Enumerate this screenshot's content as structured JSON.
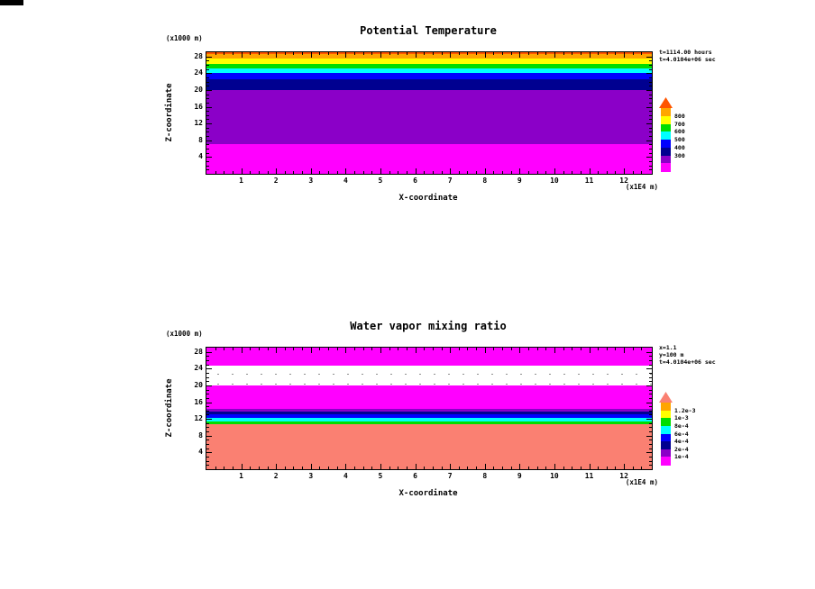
{
  "window": {
    "background": "#FFFFFF",
    "corner_mark_color": "#000000"
  },
  "chart_data": [
    {
      "type": "heatmap",
      "title": "Potential Temperature",
      "xlabel": "X-coordinate",
      "ylabel": "Z-coordinate",
      "x_unit_label": "(x1E4 m)",
      "y_unit_label": "(x1000 m)",
      "xlim": [
        0,
        12.8
      ],
      "ylim": [
        0,
        29
      ],
      "x_ticks": [
        1,
        2,
        3,
        4,
        5,
        6,
        7,
        8,
        9,
        10,
        11,
        12
      ],
      "y_ticks": [
        4,
        8,
        12,
        16,
        20,
        24,
        28
      ],
      "annotations": [
        "t=1114.00 hours",
        "t=4.0104e+06 sec"
      ],
      "bands": [
        {
          "z_from": 0,
          "z_to": 7,
          "color": "#FF00FF",
          "value_range": "< 300"
        },
        {
          "z_from": 7,
          "z_to": 20,
          "color": "#8B00C8",
          "value_range": "300-400"
        },
        {
          "z_from": 20,
          "z_to": 22.5,
          "color": "#000090",
          "value_range": "400-500"
        },
        {
          "z_from": 22.5,
          "z_to": 24,
          "color": "#0000FF",
          "value_range": "500-600"
        },
        {
          "z_from": 24,
          "z_to": 25.2,
          "color": "#00FFFF",
          "value_range": "600-700"
        },
        {
          "z_from": 25.2,
          "z_to": 26.2,
          "color": "#00DD00",
          "value_range": "700-750"
        },
        {
          "z_from": 26.2,
          "z_to": 27.4,
          "color": "#FFFF00",
          "value_range": "750-800"
        },
        {
          "z_from": 27.4,
          "z_to": 28.6,
          "color": "#FFA500",
          "value_range": "~800"
        },
        {
          "z_from": 28.6,
          "z_to": 29,
          "color": "#FF5500",
          "value_range": "> 800"
        }
      ],
      "colorbar": {
        "labels_top_to_bottom": [
          "800",
          "700",
          "600",
          "500",
          "400",
          "300"
        ],
        "segment_colors_top_to_bottom": [
          "#FFA500",
          "#FFFF00",
          "#00DD00",
          "#00FFFF",
          "#0000FF",
          "#000090",
          "#8B00C8",
          "#FF00FF"
        ],
        "overflow_arrow_color": "#FF5500"
      }
    },
    {
      "type": "heatmap",
      "title": "Water vapor mixing ratio",
      "xlabel": "X-coordinate",
      "ylabel": "Z-coordinate",
      "x_unit_label": "(x1E4 m)",
      "y_unit_label": "(x1000 m)",
      "xlim": [
        0,
        12.8
      ],
      "ylim": [
        0,
        29
      ],
      "x_ticks": [
        1,
        2,
        3,
        4,
        5,
        6,
        7,
        8,
        9,
        10,
        11,
        12
      ],
      "y_ticks": [
        4,
        8,
        12,
        16,
        20,
        24,
        28
      ],
      "annotations": [
        "x=1.1",
        "y=100 m",
        "t=4.0104e+06 sec"
      ],
      "bands": [
        {
          "z_from": 0,
          "z_to": 10.8,
          "color": "#FA8072",
          "value_range": "> 1.2e-3"
        },
        {
          "z_from": 10.8,
          "z_to": 11.4,
          "color": "#00DD00",
          "value_range": "8e-4 - 1e-3"
        },
        {
          "z_from": 11.4,
          "z_to": 12.2,
          "color": "#00FFFF",
          "value_range": "6e-4 - 8e-4"
        },
        {
          "z_from": 12.2,
          "z_to": 13,
          "color": "#0000FF",
          "value_range": "4e-4 - 6e-4"
        },
        {
          "z_from": 13,
          "z_to": 13.7,
          "color": "#000090",
          "value_range": "2e-4 - 4e-4"
        },
        {
          "z_from": 13.7,
          "z_to": 14.3,
          "color": "#8B00C8",
          "value_range": "1e-4 - 2e-4"
        },
        {
          "z_from": 14.3,
          "z_to": 20,
          "color": "#FF00FF",
          "value_range": "~1e-4"
        },
        {
          "z_from": 20,
          "z_to": 24.6,
          "color": "#FFFFFF",
          "pattern": "sparse-dots",
          "value_range": "< 1e-4"
        },
        {
          "z_from": 24.6,
          "z_to": 29,
          "color": "#FF00FF",
          "value_range": "~1e-4"
        }
      ],
      "colorbar": {
        "labels_top_to_bottom": [
          "1.2e-3",
          "1e-3",
          "8e-4",
          "6e-4",
          "4e-4",
          "2e-4",
          "1e-4"
        ],
        "segment_colors_top_to_bottom": [
          "#FFA500",
          "#FFFF00",
          "#00DD00",
          "#00FFFF",
          "#0000FF",
          "#000090",
          "#8B00C8",
          "#FF00FF"
        ],
        "overflow_arrow_color": "#FA8072"
      }
    }
  ]
}
